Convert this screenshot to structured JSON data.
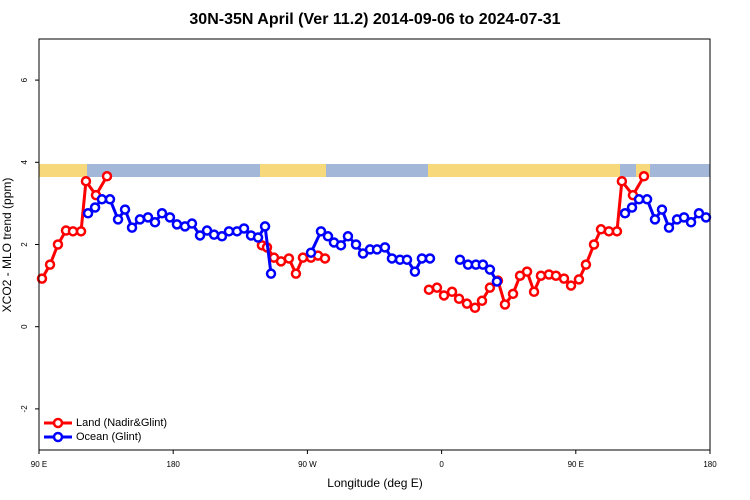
{
  "chart_data": {
    "type": "line",
    "title": "30N-35N April (Ver 11.2)   2014-09-06 to 2024-07-31",
    "x_label": "Longitude (deg E)",
    "y_label": "XCO2 - MLO trend (ppm)",
    "xlim": [
      90,
      540
    ],
    "xticks": [
      {
        "value": 90,
        "label": "90 E"
      },
      180,
      {
        "value": 270,
        "label": "90 W"
      },
      {
        "value": 360,
        "label": "0"
      },
      {
        "value": 450,
        "label": "90 E"
      },
      {
        "value": 540,
        "label": "180"
      }
    ],
    "ylim": [
      -3,
      7
    ],
    "yticks": [
      -2,
      0,
      2,
      4,
      6
    ],
    "legend": "bottom-left",
    "series": [
      {
        "name": "Land (Nadir&Glint)",
        "color": "#ff0000",
        "x": [
          92.0,
          97.4,
          102.7,
          108.1,
          112.8,
          118.2,
          121.5,
          128.2,
          135.6,
          null,
          239.5,
          242.9,
          247.6,
          252.3,
          257.6,
          262.3,
          267.0,
          272.4,
          277.1,
          281.8,
          null,
          351.5,
          356.9,
          361.6,
          367.0,
          371.7,
          377.0,
          382.4,
          387.1,
          392.4,
          397.8,
          402.5,
          407.9,
          412.6,
          417.3,
          422.0,
          426.6,
          432.0,
          436.7,
          442.1,
          446.8,
          452.1,
          456.8,
          462.2,
          466.9,
          472.2,
          477.6,
          480.9,
          488.3,
          495.7
        ],
        "values": [
          1.17,
          1.51,
          2.0,
          2.34,
          2.32,
          2.32,
          3.54,
          3.2,
          3.66,
          null,
          1.98,
          1.93,
          1.68,
          1.59,
          1.66,
          1.29,
          1.68,
          1.68,
          1.73,
          1.66,
          null,
          0.9,
          0.95,
          0.76,
          0.85,
          0.68,
          0.56,
          0.46,
          0.63,
          0.95,
          1.12,
          0.54,
          0.8,
          1.24,
          1.34,
          0.85,
          1.24,
          1.27,
          1.24,
          1.17,
          1.0,
          1.15,
          1.51,
          2.0,
          2.37,
          2.32,
          2.32,
          3.54,
          3.2,
          3.66
        ]
      },
      {
        "name": "Ocean (Glint)",
        "color": "#0000ff",
        "x": [
          122.9,
          127.6,
          132.2,
          137.6,
          143.0,
          147.7,
          152.4,
          157.7,
          163.1,
          167.8,
          172.5,
          177.8,
          182.5,
          187.9,
          192.6,
          198.0,
          202.7,
          207.4,
          212.7,
          217.4,
          222.8,
          227.5,
          232.2,
          236.9,
          241.6,
          245.6,
          null,
          272.4,
          279.1,
          283.8,
          287.8,
          292.5,
          297.2,
          302.6,
          307.3,
          312.0,
          316.7,
          322.0,
          326.7,
          332.1,
          336.8,
          342.1,
          346.8,
          352.2,
          null,
          372.3,
          377.7,
          383.0,
          387.7,
          392.4,
          397.1,
          null,
          483.0,
          487.7,
          492.4,
          497.8,
          503.1,
          507.8,
          512.5,
          517.9,
          522.6,
          527.3,
          532.6,
          537.3
        ],
        "values": [
          2.76,
          2.9,
          3.1,
          3.1,
          2.61,
          2.85,
          2.41,
          2.61,
          2.66,
          2.54,
          2.76,
          2.66,
          2.49,
          2.44,
          2.51,
          2.22,
          2.34,
          2.24,
          2.2,
          2.32,
          2.32,
          2.39,
          2.22,
          2.17,
          2.44,
          1.29,
          null,
          1.8,
          2.32,
          2.2,
          2.05,
          1.98,
          2.2,
          2.0,
          1.78,
          1.88,
          1.88,
          1.93,
          1.66,
          1.63,
          1.63,
          1.34,
          1.66,
          1.66,
          null,
          1.63,
          1.51,
          1.51,
          1.51,
          1.39,
          1.1,
          null,
          2.76,
          2.9,
          3.1,
          3.1,
          2.61,
          2.85,
          2.41,
          2.61,
          2.66,
          2.54,
          2.76,
          2.66
        ]
      }
    ]
  }
}
